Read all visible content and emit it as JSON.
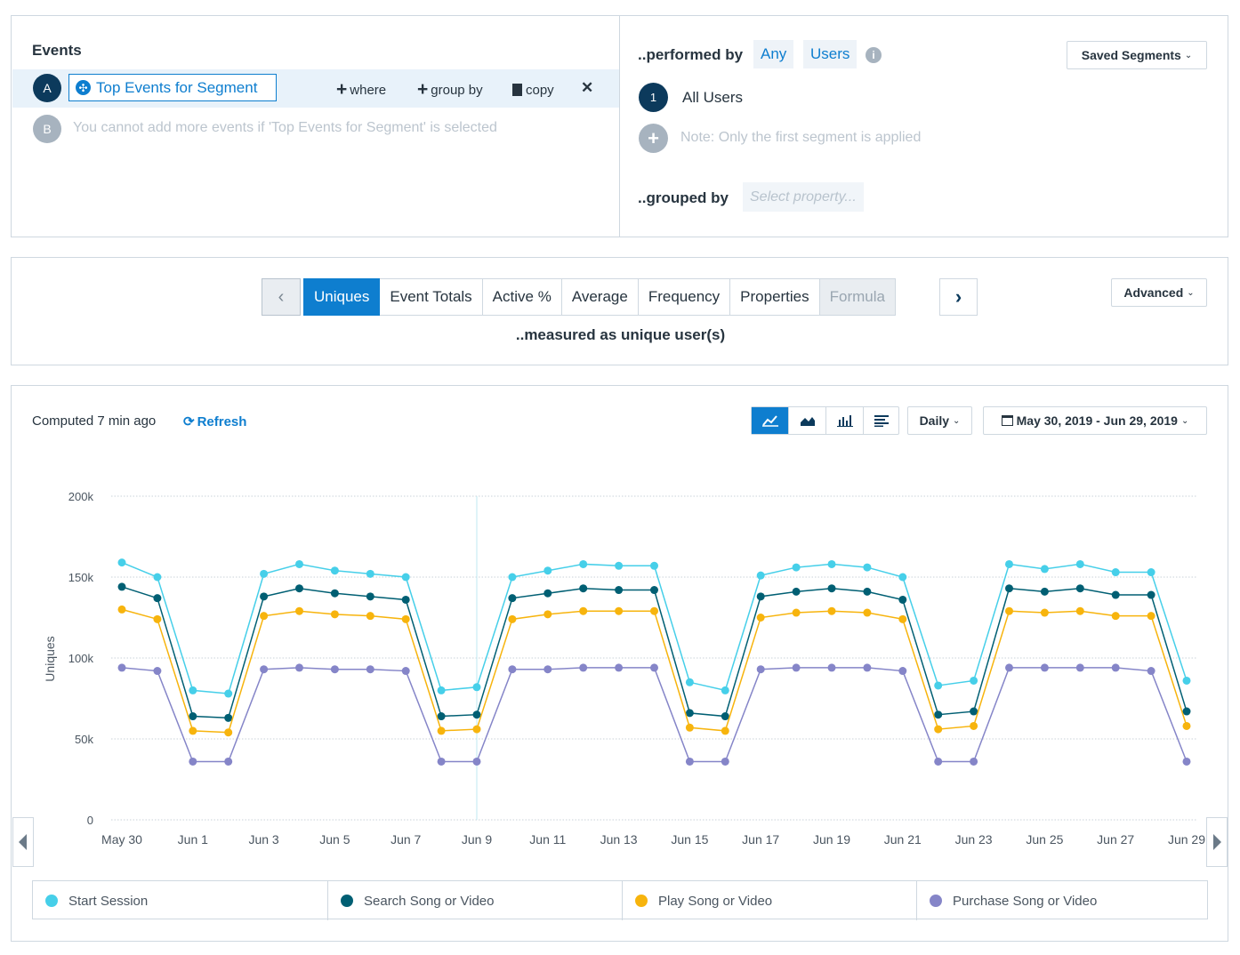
{
  "events_panel": {
    "title": "Events",
    "event_a": {
      "letter": "A",
      "name": "Top Events for Segment"
    },
    "actions": {
      "where": "where",
      "group_by": "group by",
      "copy": "copy",
      "remove": "✕"
    },
    "event_b": {
      "letter": "B",
      "message": "You cannot add more events if 'Top Events for Segment' is selected"
    }
  },
  "segment_panel": {
    "performed_by_label": "..performed by",
    "any_label": "Any",
    "users_label": "Users",
    "saved_segments_label": "Saved Segments",
    "segment_1": {
      "number": "1",
      "label": "All Users"
    },
    "note": "Note: Only the first segment is applied",
    "grouped_by_label": "..grouped by",
    "property_placeholder": "Select property..."
  },
  "measure_panel": {
    "tabs": [
      "Uniques",
      "Event Totals",
      "Active %",
      "Average",
      "Frequency",
      "Properties",
      "Formula"
    ],
    "active_tab": "Uniques",
    "disabled_tab": "Formula",
    "measured_as": "..measured as unique user(s)",
    "advanced_label": "Advanced"
  },
  "chart_panel": {
    "computed_text": "Computed 7 min ago",
    "refresh_label": "Refresh",
    "interval_label": "Daily",
    "date_range": "May 30, 2019 - Jun 29, 2019",
    "chart_type_icons": [
      "line-chart-icon",
      "area-chart-icon",
      "bar-chart-icon",
      "table-icon"
    ]
  },
  "colors": {
    "primary": "#0e7ecf",
    "dark_navy": "#0c3a5c",
    "start_session": "#46cfe9",
    "search_song": "#005f73",
    "play_song": "#f7b40d",
    "purchase_song": "#8585c8"
  },
  "chart_data": {
    "type": "line",
    "ylabel": "Uniques",
    "ylim": [
      0,
      200000
    ],
    "yticks": [
      "0",
      "50k",
      "100k",
      "150k",
      "200k"
    ],
    "x": [
      "May 30",
      "May 31",
      "Jun 1",
      "Jun 2",
      "Jun 3",
      "Jun 4",
      "Jun 5",
      "Jun 6",
      "Jun 7",
      "Jun 8",
      "Jun 9",
      "Jun 10",
      "Jun 11",
      "Jun 12",
      "Jun 13",
      "Jun 14",
      "Jun 15",
      "Jun 16",
      "Jun 17",
      "Jun 18",
      "Jun 19",
      "Jun 20",
      "Jun 21",
      "Jun 22",
      "Jun 23",
      "Jun 24",
      "Jun 25",
      "Jun 26",
      "Jun 27",
      "Jun 28",
      "Jun 29"
    ],
    "xtick_labels": [
      "May 30",
      "Jun 1",
      "Jun 3",
      "Jun 5",
      "Jun 7",
      "Jun 9",
      "Jun 11",
      "Jun 13",
      "Jun 15",
      "Jun 17",
      "Jun 19",
      "Jun 21",
      "Jun 23",
      "Jun 25",
      "Jun 27",
      "Jun 29"
    ],
    "grid": true,
    "legend_position": "bottom",
    "series": [
      {
        "name": "Start Session",
        "color": "#46cfe9",
        "values": [
          159000,
          150000,
          80000,
          78000,
          152000,
          158000,
          154000,
          152000,
          150000,
          80000,
          82000,
          150000,
          154000,
          158000,
          157000,
          157000,
          85000,
          80000,
          151000,
          156000,
          158000,
          156000,
          150000,
          83000,
          86000,
          158000,
          155000,
          158000,
          153000,
          153000,
          86000
        ]
      },
      {
        "name": "Search Song or Video",
        "color": "#005f73",
        "values": [
          144000,
          137000,
          64000,
          63000,
          138000,
          143000,
          140000,
          138000,
          136000,
          64000,
          65000,
          137000,
          140000,
          143000,
          142000,
          142000,
          66000,
          64000,
          138000,
          141000,
          143000,
          141000,
          136000,
          65000,
          67000,
          143000,
          141000,
          143000,
          139000,
          139000,
          67000
        ]
      },
      {
        "name": "Play Song or Video",
        "color": "#f7b40d",
        "values": [
          130000,
          124000,
          55000,
          54000,
          126000,
          129000,
          127000,
          126000,
          124000,
          55000,
          56000,
          124000,
          127000,
          129000,
          129000,
          129000,
          57000,
          55000,
          125000,
          128000,
          129000,
          128000,
          124000,
          56000,
          58000,
          129000,
          128000,
          129000,
          126000,
          126000,
          58000
        ]
      },
      {
        "name": "Purchase Song or Video",
        "color": "#8585c8",
        "values": [
          94000,
          92000,
          36000,
          36000,
          93000,
          94000,
          93000,
          93000,
          92000,
          36000,
          36000,
          93000,
          93000,
          94000,
          94000,
          94000,
          36000,
          36000,
          93000,
          94000,
          94000,
          94000,
          92000,
          36000,
          36000,
          94000,
          94000,
          94000,
          94000,
          92000,
          36000
        ]
      }
    ]
  }
}
